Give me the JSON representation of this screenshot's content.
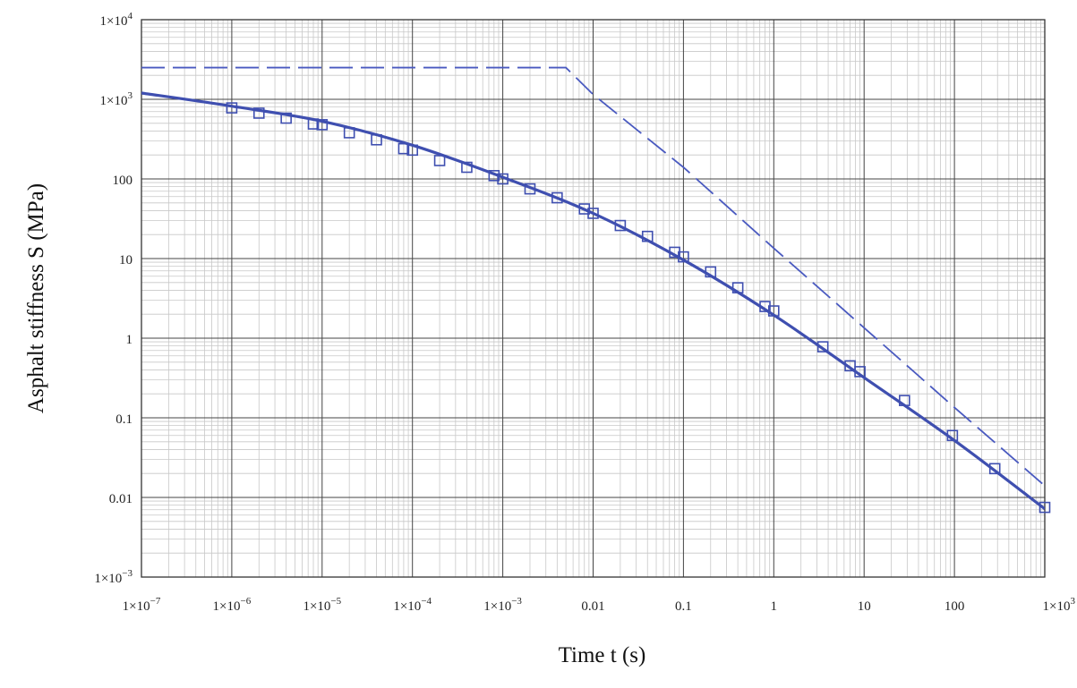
{
  "chart_data": {
    "type": "line",
    "xlabel": "Time t (s)",
    "ylabel": "Asphalt stiffness S (MPa)",
    "x_scale": "log",
    "y_scale": "log",
    "xlim": [
      1e-07,
      1000
    ],
    "ylim": [
      0.001,
      10000
    ],
    "grid": true,
    "x_ticks": [
      {
        "value": 1e-07,
        "base": "1×10",
        "exp": "−7"
      },
      {
        "value": 1e-06,
        "base": "1×10",
        "exp": "−6"
      },
      {
        "value": 1e-05,
        "base": "1×10",
        "exp": "−5"
      },
      {
        "value": 0.0001,
        "base": "1×10",
        "exp": "−4"
      },
      {
        "value": 0.001,
        "base": "1×10",
        "exp": "−3"
      },
      {
        "value": 0.01,
        "base": "0.01",
        "exp": ""
      },
      {
        "value": 0.1,
        "base": "0.1",
        "exp": ""
      },
      {
        "value": 1,
        "base": "1",
        "exp": ""
      },
      {
        "value": 10,
        "base": "10",
        "exp": ""
      },
      {
        "value": 100,
        "base": "100",
        "exp": ""
      },
      {
        "value": 1000,
        "base": "1×10",
        "exp": "3"
      }
    ],
    "y_ticks": [
      {
        "value": 0.001,
        "base": "1×10",
        "exp": "−3"
      },
      {
        "value": 0.01,
        "base": "0.01",
        "exp": ""
      },
      {
        "value": 0.1,
        "base": "0.1",
        "exp": ""
      },
      {
        "value": 1,
        "base": "1",
        "exp": ""
      },
      {
        "value": 10,
        "base": "10",
        "exp": ""
      },
      {
        "value": 100,
        "base": "100",
        "exp": ""
      },
      {
        "value": 1000,
        "base": "1×10",
        "exp": "3"
      },
      {
        "value": 10000,
        "base": "1×10",
        "exp": "4"
      }
    ],
    "series": [
      {
        "style": "solid",
        "color": "#3f4fb0",
        "x": [
          1e-07,
          1e-06,
          1e-05,
          0.0001,
          0.001,
          0.01,
          0.1,
          1,
          10,
          100,
          1000
        ],
        "y": [
          1200,
          820,
          530,
          265,
          105,
          37,
          9.6,
          1.95,
          0.32,
          0.052,
          0.0072
        ]
      },
      {
        "style": "dashed",
        "color": "#4a5ac0",
        "x": [
          1e-07,
          0.005,
          0.01,
          0.1,
          1,
          10,
          100,
          1000
        ],
        "y": [
          2500,
          2500,
          1150,
          140,
          13.5,
          1.35,
          0.135,
          0.014
        ]
      },
      {
        "style": "markers",
        "marker": "square",
        "color": "#3f4fb0",
        "x": [
          1e-06,
          2e-06,
          4e-06,
          8e-06,
          1e-05,
          2e-05,
          4e-05,
          8e-05,
          0.0001,
          0.0002,
          0.0004,
          0.0008,
          0.001,
          0.002,
          0.004,
          0.008,
          0.01,
          0.02,
          0.04,
          0.08,
          0.1,
          0.2,
          0.4,
          0.8,
          1,
          3.5,
          7,
          9,
          28,
          95,
          280,
          1000
        ],
        "y": [
          780,
          670,
          580,
          490,
          480,
          380,
          310,
          240,
          230,
          170,
          140,
          110,
          100,
          75,
          58,
          42,
          37,
          26,
          19,
          12,
          10.5,
          6.8,
          4.3,
          2.5,
          2.2,
          0.78,
          0.45,
          0.38,
          0.165,
          0.06,
          0.023,
          0.0075
        ]
      }
    ]
  }
}
